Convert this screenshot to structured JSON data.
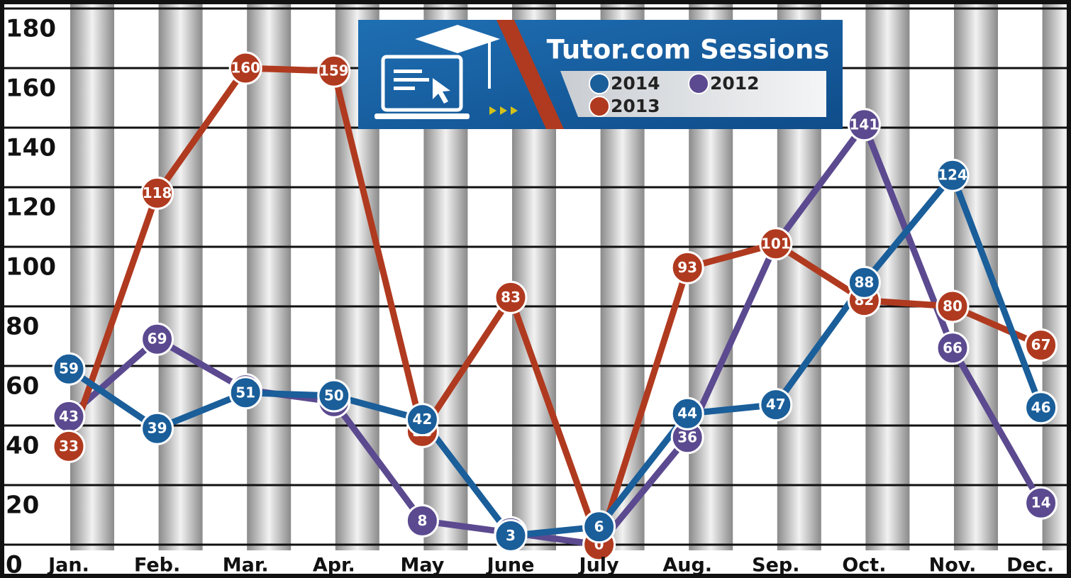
{
  "chart_data": {
    "type": "line",
    "title": "Tutor.com Sessions",
    "categories": [
      "Jan.",
      "Feb.",
      "Mar.",
      "Apr.",
      "May",
      "June",
      "July",
      "Aug.",
      "Sep.",
      "Oct.",
      "Nov.",
      "Dec."
    ],
    "series": [
      {
        "name": "2014",
        "color": "#1a5e9a",
        "values": [
          59,
          39,
          51,
          50,
          42,
          3,
          6,
          44,
          47,
          88,
          124,
          46
        ]
      },
      {
        "name": "2012",
        "color": "#5b4a8f",
        "values": [
          43,
          69,
          52,
          48,
          8,
          4,
          0,
          36,
          101,
          141,
          66,
          14
        ]
      },
      {
        "name": "2013",
        "color": "#b03a1f",
        "values": [
          33,
          118,
          160,
          159,
          38,
          83,
          0,
          93,
          101,
          82,
          80,
          67
        ]
      }
    ],
    "ylim": [
      0,
      180
    ],
    "yticks": [
      0,
      20,
      40,
      60,
      80,
      100,
      120,
      140,
      160,
      180
    ],
    "grid": true,
    "legend": "top-center",
    "data_labels": true
  }
}
